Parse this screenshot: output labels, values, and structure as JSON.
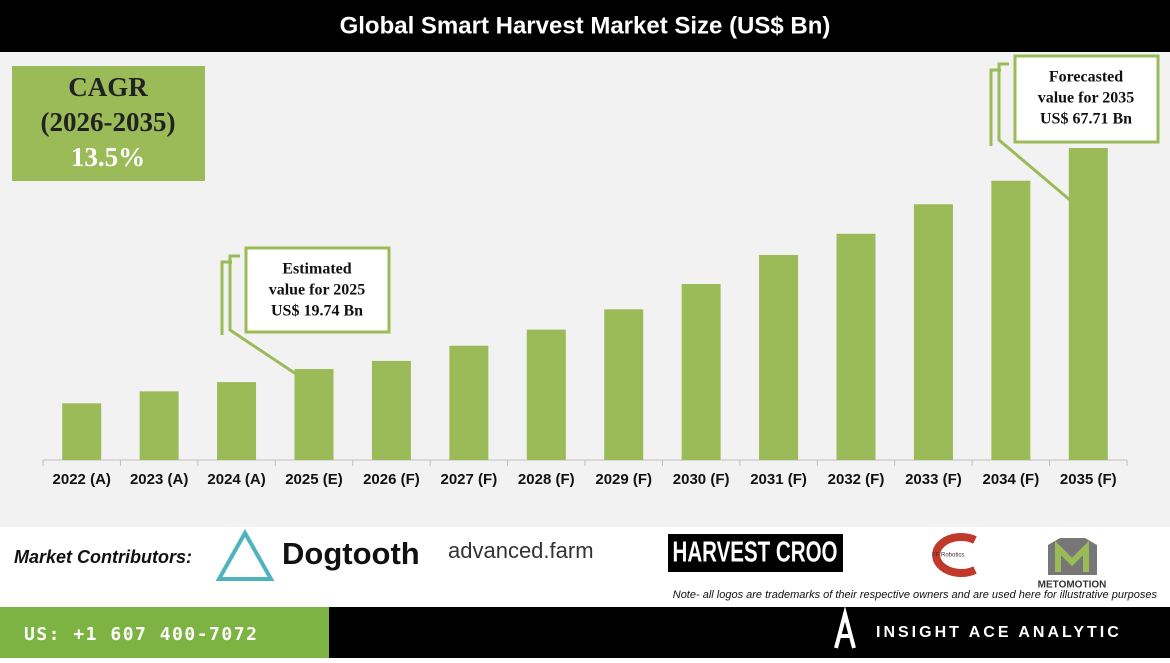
{
  "title": "Global Smart Harvest Market Size (US$ Bn)",
  "cagr": {
    "label": "CAGR",
    "period": "(2026-2035)",
    "value": "13.5%"
  },
  "chart_data": {
    "type": "bar",
    "categories": [
      "2022 (A)",
      "2023 (A)",
      "2024 (A)",
      "2025 (E)",
      "2026 (F)",
      "2027 (F)",
      "2028 (F)",
      "2029 (F)",
      "2030 (F)",
      "2031 (F)",
      "2032 (F)",
      "2033 (F)",
      "2034 (F)",
      "2035 (F)"
    ],
    "values": [
      12.3,
      14.9,
      16.9,
      19.74,
      21.5,
      24.8,
      28.3,
      32.7,
      38.2,
      44.5,
      49.1,
      55.5,
      60.6,
      67.71
    ],
    "color": "#9bbb59",
    "annotations": [
      [
        "Estimated",
        "value for 2025",
        "US$ 19.74 Bn"
      ],
      [
        "Forecasted",
        "value for 2035",
        "US$ 67.71 Bn"
      ]
    ]
  },
  "footer": {
    "contributors_label": "Market Contributors:",
    "logos": [
      "Dogtooth",
      "advanced.farm",
      "HARVEST CROO",
      "FF Robotics",
      "METOMOTION"
    ],
    "note": "Note- all logos are trademarks of their respective owners and are used here for illustrative purposes",
    "phone": "US: +1 607 400-7072",
    "brand": "INSIGHT ACE ANALYTIC"
  }
}
